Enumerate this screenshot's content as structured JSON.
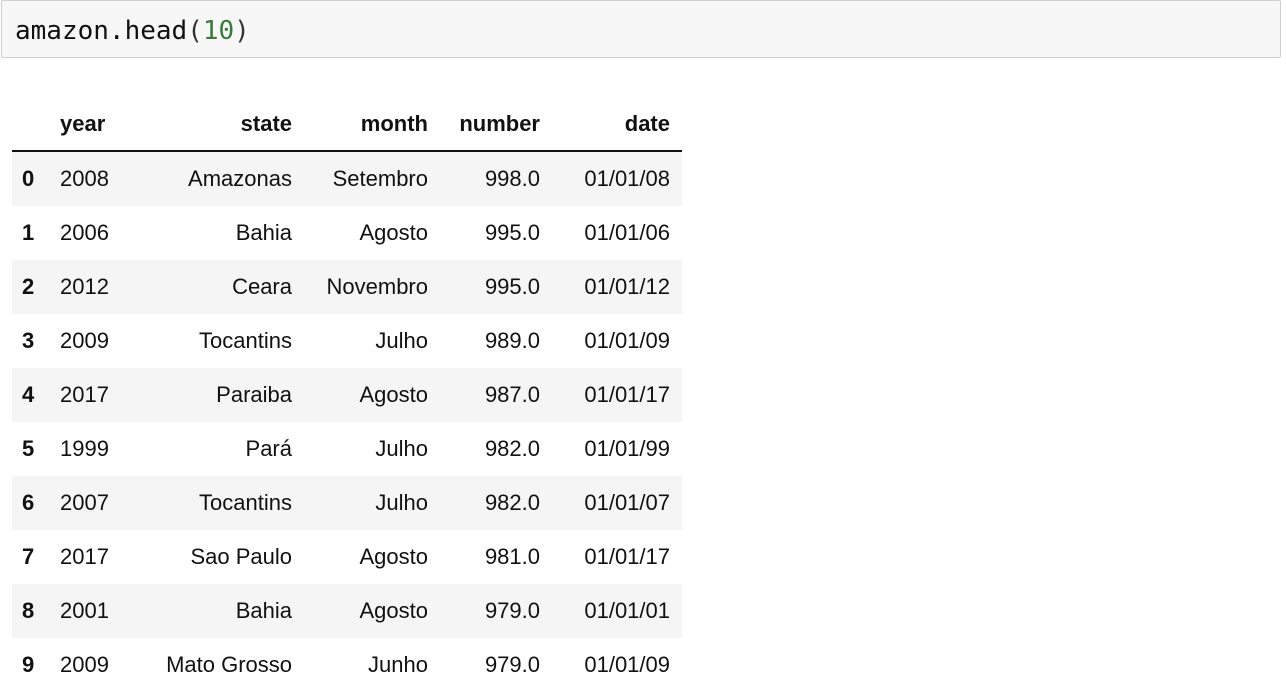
{
  "code_cell": {
    "object": "amazon",
    "method": ".head",
    "open_paren": "(",
    "argument": "10",
    "close_paren": ")"
  },
  "dataframe": {
    "columns": [
      "year",
      "state",
      "month",
      "number",
      "date"
    ],
    "rows": [
      {
        "index": "0",
        "year": "2008",
        "state": "Amazonas",
        "month": "Setembro",
        "number": "998.0",
        "date": "01/01/08"
      },
      {
        "index": "1",
        "year": "2006",
        "state": "Bahia",
        "month": "Agosto",
        "number": "995.0",
        "date": "01/01/06"
      },
      {
        "index": "2",
        "year": "2012",
        "state": "Ceara",
        "month": "Novembro",
        "number": "995.0",
        "date": "01/01/12"
      },
      {
        "index": "3",
        "year": "2009",
        "state": "Tocantins",
        "month": "Julho",
        "number": "989.0",
        "date": "01/01/09"
      },
      {
        "index": "4",
        "year": "2017",
        "state": "Paraiba",
        "month": "Agosto",
        "number": "987.0",
        "date": "01/01/17"
      },
      {
        "index": "5",
        "year": "1999",
        "state": "Pará",
        "month": "Julho",
        "number": "982.0",
        "date": "01/01/99"
      },
      {
        "index": "6",
        "year": "2007",
        "state": "Tocantins",
        "month": "Julho",
        "number": "982.0",
        "date": "01/01/07"
      },
      {
        "index": "7",
        "year": "2017",
        "state": "Sao Paulo",
        "month": "Agosto",
        "number": "981.0",
        "date": "01/01/17"
      },
      {
        "index": "8",
        "year": "2001",
        "state": "Bahia",
        "month": "Agosto",
        "number": "979.0",
        "date": "01/01/01"
      },
      {
        "index": "9",
        "year": "2009",
        "state": "Mato Grosso",
        "month": "Junho",
        "number": "979.0",
        "date": "01/01/09"
      }
    ]
  },
  "colors": {
    "cell_background": "#f7f7f7",
    "cell_border": "#cfcfcf",
    "stripe": "#f5f5f5",
    "number_literal": "#3a7a3a"
  }
}
